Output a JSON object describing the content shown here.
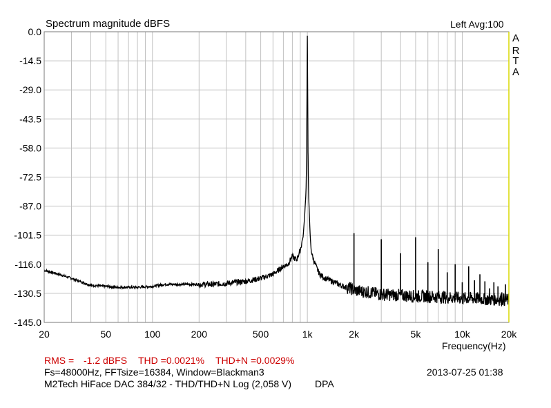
{
  "header": {
    "title": "Spectrum magnitude dBFS",
    "channel_avg": "Left  Avg:100",
    "brand_letters": [
      "A",
      "R",
      "T",
      "A"
    ]
  },
  "footer": {
    "rms_label": "RMS =",
    "rms_value": "-1.2 dBFS",
    "thd": "THD =0.0021%",
    "thdn": "THD+N =0.0029%",
    "settings": "Fs=48000Hz, FFTsize=16384, Window=Blackman3",
    "timestamp": "2013-07-25  01:38",
    "device": "M2Tech HiFace DAC 384/32 - THD/THD+N Log (2,058 V)",
    "tag": "DPA",
    "rms_color": "#cc0000"
  },
  "chart_data": {
    "type": "line",
    "title": "Spectrum magnitude dBFS",
    "xlabel": "Frequency(Hz)",
    "ylabel": "",
    "x_scale": "log",
    "xlim": [
      20,
      20000
    ],
    "ylim": [
      -145,
      0
    ],
    "grid": true,
    "x_tick_labels": [
      {
        "v": 20,
        "label": "20"
      },
      {
        "v": 50,
        "label": "50"
      },
      {
        "v": 100,
        "label": "100"
      },
      {
        "v": 200,
        "label": "200"
      },
      {
        "v": 500,
        "label": "500"
      },
      {
        "v": 1000,
        "label": "1k"
      },
      {
        "v": 2000,
        "label": "2k"
      },
      {
        "v": 5000,
        "label": "5k"
      },
      {
        "v": 10000,
        "label": "10k"
      },
      {
        "v": 20000,
        "label": "20k"
      }
    ],
    "y_tick_labels": [
      {
        "v": 0,
        "label": "0.0"
      },
      {
        "v": -14.5,
        "label": "-14.5"
      },
      {
        "v": -29,
        "label": "-29.0"
      },
      {
        "v": -43.5,
        "label": "-43.5"
      },
      {
        "v": -58,
        "label": "-58.0"
      },
      {
        "v": -72.5,
        "label": "-72.5"
      },
      {
        "v": -87,
        "label": "-87.0"
      },
      {
        "v": -101.5,
        "label": "-101.5"
      },
      {
        "v": -116,
        "label": "-116.0"
      },
      {
        "v": -130.5,
        "label": "-130.5"
      },
      {
        "v": -145,
        "label": "-145.0"
      }
    ],
    "series": [
      {
        "color": "#000000",
        "x": [
          20,
          25,
          30,
          40,
          50,
          60,
          80,
          100,
          120,
          150,
          200,
          250,
          300,
          400,
          500,
          600,
          700,
          750,
          800,
          850,
          900,
          940,
          960,
          980,
          990,
          995,
          1000,
          1005,
          1010,
          1020,
          1040,
          1060,
          1100,
          1150,
          1200,
          1300,
          1500,
          1700,
          1900,
          2000,
          2500,
          3000,
          4000,
          5000,
          6000,
          8000,
          10000,
          12000,
          15000,
          18000,
          20000
        ],
        "y": [
          -119,
          -121,
          -123,
          -126.5,
          -127,
          -127.5,
          -127.5,
          -127,
          -126,
          -126,
          -126,
          -126,
          -125.5,
          -124.5,
          -123,
          -121,
          -117,
          -116,
          -112,
          -114,
          -109,
          -102,
          -92,
          -80,
          -60,
          -30,
          -2,
          -30,
          -60,
          -82,
          -100,
          -110,
          -114,
          -118,
          -121,
          -123,
          -125,
          -127,
          -128,
          -129,
          -130,
          -131,
          -131.5,
          -132,
          -132,
          -132.5,
          -133,
          -133,
          -133.5,
          -133.5,
          -134
        ]
      }
    ],
    "harmonics": [
      {
        "f": 2000,
        "db": -100.5
      },
      {
        "f": 3000,
        "db": -103.5
      },
      {
        "f": 4000,
        "db": -110.5
      },
      {
        "f": 5000,
        "db": -102.5
      },
      {
        "f": 6000,
        "db": -115
      },
      {
        "f": 7000,
        "db": -108.5
      },
      {
        "f": 8000,
        "db": -120
      },
      {
        "f": 9000,
        "db": -116
      },
      {
        "f": 10000,
        "db": -125
      },
      {
        "f": 11000,
        "db": -117
      },
      {
        "f": 12000,
        "db": -124
      },
      {
        "f": 13000,
        "db": -121
      },
      {
        "f": 14000,
        "db": -124.5
      },
      {
        "f": 15000,
        "db": -128
      },
      {
        "f": 16000,
        "db": -125
      },
      {
        "f": 17000,
        "db": -127
      },
      {
        "f": 18000,
        "db": -130
      },
      {
        "f": 19000,
        "db": -126
      }
    ]
  }
}
